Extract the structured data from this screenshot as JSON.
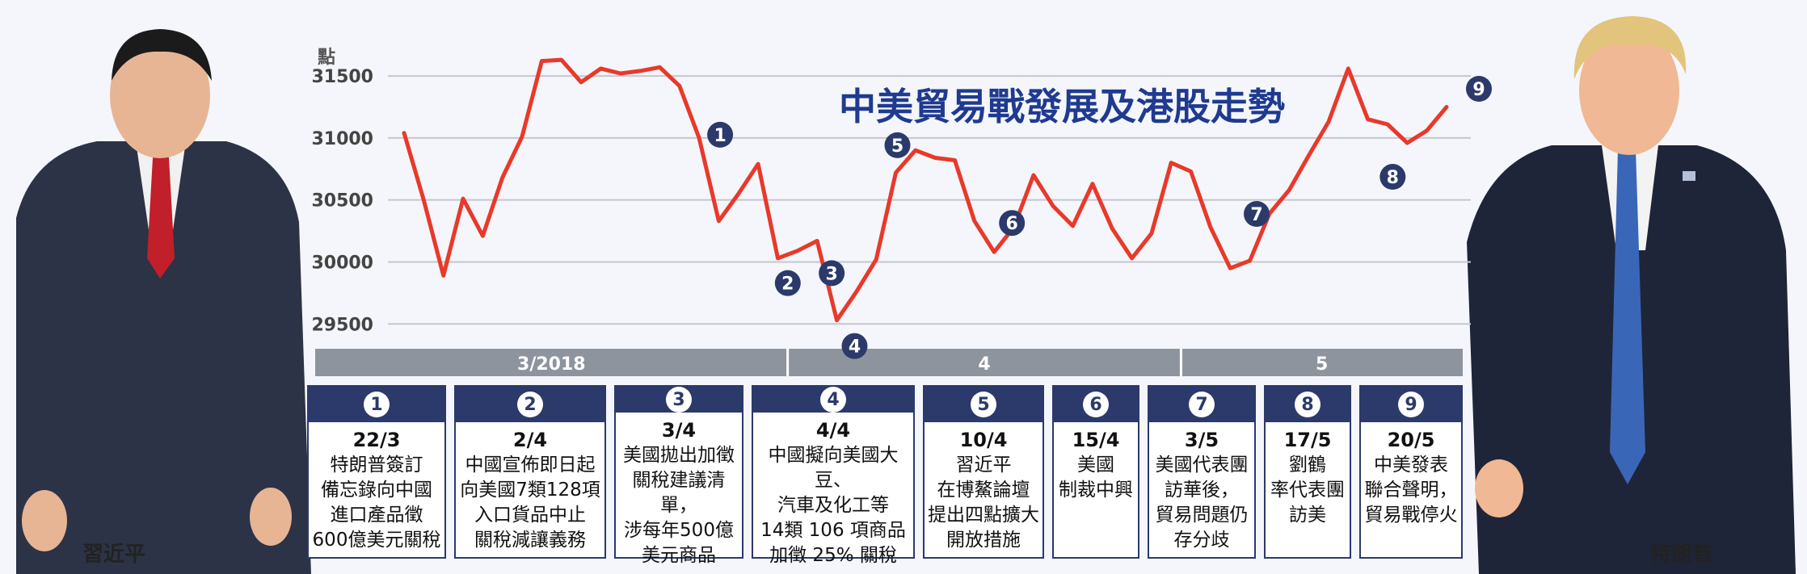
{
  "chart_data": {
    "type": "line",
    "title": "中美貿易戰發展及港股走勢",
    "ylabel": "點",
    "ylim": [
      29300,
      31800
    ],
    "yticks": [
      29500,
      30000,
      30500,
      31000,
      31500
    ],
    "ytick_labels": [
      "29500",
      "30000",
      "30500",
      "31000",
      "31500"
    ],
    "month_bands": [
      {
        "label": "3/2018",
        "start": 0,
        "end": 19
      },
      {
        "label": "4",
        "start": 20,
        "end": 39
      },
      {
        "label": "5",
        "start": 40,
        "end": 52
      }
    ],
    "series": [
      {
        "values": [
          31040,
          30500,
          29890,
          30510,
          30210,
          30680,
          31010,
          31620,
          31630,
          31450,
          31560,
          31520,
          31540,
          31570,
          31420,
          31000,
          30330,
          30550,
          30790,
          30030,
          30090,
          30170,
          29530,
          29760,
          30020,
          30720,
          30900,
          30840,
          30820,
          30330,
          30080,
          30280,
          30700,
          30450,
          30290,
          30630,
          30270,
          30030,
          30230,
          30800,
          30730,
          30280,
          29950,
          30010,
          30390,
          30580,
          30860,
          31130,
          31560,
          31150,
          31110,
          30960,
          31060,
          31250
        ],
        "color": "#e8392a"
      }
    ],
    "markers": [
      {
        "num": "1",
        "index": 15
      },
      {
        "num": "2",
        "index": 20
      },
      {
        "num": "3",
        "index": 21
      },
      {
        "num": "4",
        "index": 22
      },
      {
        "num": "5",
        "index": 25
      },
      {
        "num": "6",
        "index": 30
      },
      {
        "num": "7",
        "index": 42
      },
      {
        "num": "8",
        "index": 51
      },
      {
        "num": "9",
        "index": 53
      }
    ]
  },
  "events": [
    {
      "num": "1",
      "date": "22/3",
      "desc": "特朗普簽訂\n備忘錄向中國\n進口產品徵\n600億美元關稅"
    },
    {
      "num": "2",
      "date": "2/4",
      "desc": "中國宣佈即日起\n向美國7類128項\n入口貨品中止\n關稅減讓義務"
    },
    {
      "num": "3",
      "date": "3/4",
      "desc": "美國拋出加徵\n關稅建議清單，\n涉每年500億\n美元商品"
    },
    {
      "num": "4",
      "date": "4/4",
      "desc": "中國擬向美國大豆、\n汽車及化工等\n14類 106 項商品\n加徵 25% 關稅"
    },
    {
      "num": "5",
      "date": "10/4",
      "desc": "習近平\n在博鰲論壇\n提出四點擴大\n開放措施"
    },
    {
      "num": "6",
      "date": "15/4",
      "desc": "美國\n制裁中興"
    },
    {
      "num": "7",
      "date": "3/5",
      "desc": "美國代表團\n訪華後，\n貿易問題仍\n存分歧"
    },
    {
      "num": "8",
      "date": "17/5",
      "desc": "劉鶴\n率代表團\n訪美"
    },
    {
      "num": "9",
      "date": "20/5",
      "desc": "中美發表\n聯合聲明，\n貿易戰停火"
    }
  ],
  "people": {
    "left_name": "習近平",
    "right_name": "特朗普"
  },
  "colors": {
    "line": "#e8392a",
    "accent": "#2b3a6b",
    "title": "#1f3a8f",
    "band": "#8d949d",
    "grid": "#c4c8ce"
  }
}
